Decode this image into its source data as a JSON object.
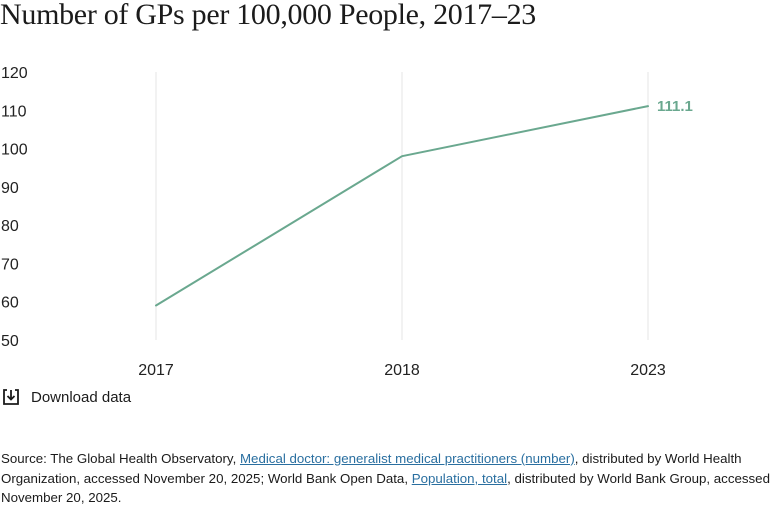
{
  "page": {
    "title": "Number of GPs per 100,000 People, 2017–23",
    "download_label": "Download data"
  },
  "source": {
    "prefix": "Source: The Global Health Observatory, ",
    "link1": "Medical doctor: generalist medical practitioners (number)",
    "middle": ", distributed by World Health Organization, accessed November 20, 2025; World Bank Open Data, ",
    "link2": "Population, total",
    "suffix": ", distributed by World Bank Group, accessed November 20, 2025."
  },
  "colors": {
    "line": "#6aa88f",
    "gridline": "#e6e6e6",
    "link": "#2a6fa0"
  },
  "icons": {
    "download": "download-icon"
  },
  "chart_data": {
    "type": "line",
    "title": "Number of GPs per 100,000 People, 2017–23",
    "xlabel": "",
    "ylabel": "",
    "categories": [
      "2017",
      "2018",
      "2023"
    ],
    "series": [
      {
        "values": [
          59,
          98,
          111.1
        ]
      }
    ],
    "end_label": "111.1",
    "ylim": [
      50,
      120
    ],
    "yticks": [
      "50",
      "60",
      "70",
      "80",
      "90",
      "100",
      "110",
      "120"
    ],
    "grid": "vertical"
  }
}
